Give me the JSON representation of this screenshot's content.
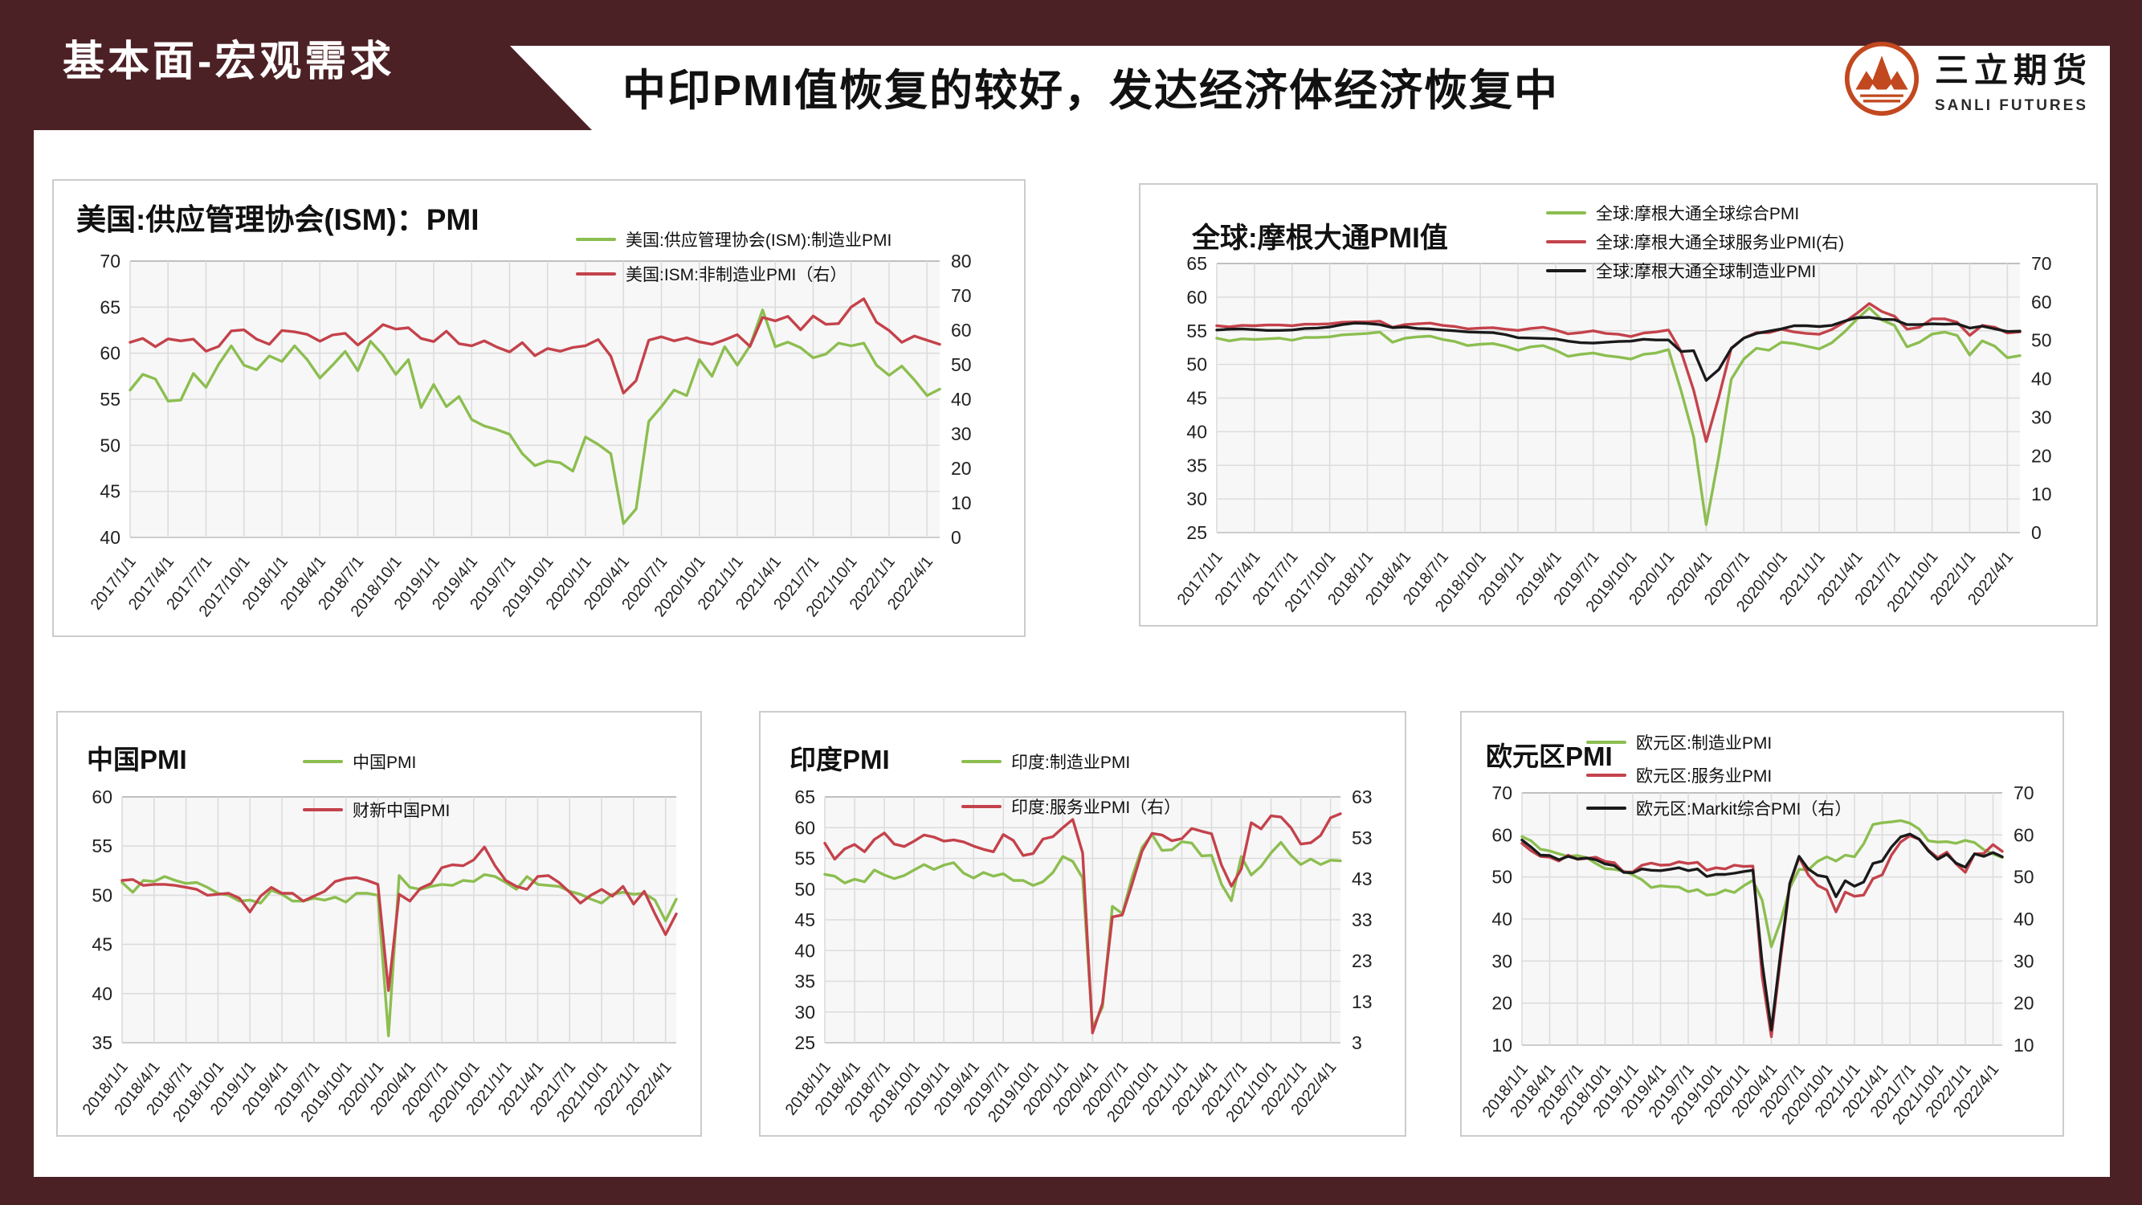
{
  "header": {
    "section_label": "基本面-宏观需求",
    "title": "中印PMI值恢复的较好，发达经济体经济恢复中",
    "logo": {
      "name": "三立期货",
      "subtitle": "SANLI FUTURES",
      "color": "#c2481f"
    }
  },
  "colors": {
    "green": "#8cbe50",
    "red": "#c4424b",
    "black": "#1a1a1a",
    "maroon": "#4c2125",
    "grid": "#dcdcdc",
    "plot_bg": "#f7f7f7"
  },
  "chart_data": [
    {
      "type": "line",
      "title": "美国:供应管理协会(ISM)：PMI",
      "left_axis": {
        "min": 40,
        "max": 70,
        "ticks": [
          70,
          65,
          60,
          55,
          50,
          45,
          40
        ]
      },
      "right_axis": {
        "min": 0,
        "max": 80,
        "ticks": [
          80,
          70,
          60,
          50,
          40,
          30,
          20,
          10,
          0
        ]
      },
      "x_tick_labels": [
        "2017/1/1",
        "2017/4/1",
        "2017/7/1",
        "2017/10/1",
        "2018/1/1",
        "2018/4/1",
        "2018/7/1",
        "2018/10/1",
        "2019/1/1",
        "2019/4/1",
        "2019/7/1",
        "2019/10/1",
        "2020/1/1",
        "2020/4/1",
        "2020/7/1",
        "2020/10/1",
        "2021/1/1",
        "2021/4/1",
        "2021/7/1",
        "2021/10/1",
        "2022/1/1",
        "2022/4/1"
      ],
      "series": [
        {
          "label": "美国:供应管理协会(ISM):制造业PMI",
          "color": "#8cbe50",
          "axis": "left",
          "values": [
            56.0,
            57.7,
            57.2,
            54.8,
            54.9,
            57.8,
            56.3,
            58.8,
            60.8,
            58.7,
            58.2,
            59.7,
            59.1,
            60.8,
            59.3,
            57.3,
            58.7,
            60.2,
            58.1,
            61.3,
            59.8,
            57.7,
            59.3,
            54.1,
            56.6,
            54.2,
            55.3,
            52.8,
            52.1,
            51.7,
            51.2,
            49.1,
            47.8,
            48.3,
            48.1,
            47.2,
            50.9,
            50.1,
            49.1,
            41.5,
            43.1,
            52.6,
            54.2,
            56.0,
            55.4,
            59.3,
            57.5,
            60.7,
            58.7,
            60.8,
            64.7,
            60.7,
            61.2,
            60.6,
            59.5,
            59.9,
            61.1,
            60.8,
            61.1,
            58.7,
            57.6,
            58.6,
            57.1,
            55.4,
            56.1
          ]
        },
        {
          "label": "美国:ISM:非制造业PMI（右）",
          "color": "#c4424b",
          "axis": "right",
          "values": [
            56.5,
            57.6,
            55.2,
            57.5,
            56.9,
            57.4,
            53.9,
            55.3,
            59.8,
            60.1,
            57.4,
            55.9,
            59.9,
            59.5,
            58.8,
            56.8,
            58.6,
            59.1,
            55.7,
            58.5,
            61.6,
            60.3,
            60.7,
            57.6,
            56.7,
            59.7,
            56.1,
            55.5,
            56.9,
            55.1,
            53.7,
            56.4,
            52.6,
            54.7,
            53.9,
            55.0,
            55.5,
            57.3,
            52.5,
            41.8,
            45.4,
            57.1,
            58.1,
            56.9,
            57.8,
            56.6,
            55.9,
            57.2,
            58.7,
            55.3,
            63.7,
            62.7,
            64.0,
            60.1,
            64.1,
            61.7,
            61.9,
            66.7,
            69.1,
            62.3,
            59.9,
            56.5,
            58.3,
            57.1,
            55.9
          ]
        }
      ]
    },
    {
      "type": "line",
      "title": "全球:摩根大通PMI值",
      "left_axis": {
        "min": 25,
        "max": 65,
        "ticks": [
          65,
          60,
          55,
          50,
          45,
          40,
          35,
          30,
          25
        ]
      },
      "right_axis": {
        "min": 0,
        "max": 70,
        "ticks": [
          70,
          60,
          50,
          40,
          30,
          20,
          10,
          0
        ]
      },
      "x_tick_labels": [
        "2017/1/1",
        "2017/4/1",
        "2017/7/1",
        "2017/10/1",
        "2018/1/1",
        "2018/4/1",
        "2018/7/1",
        "2018/10/1",
        "2019/1/1",
        "2019/4/1",
        "2019/7/1",
        "2019/10/1",
        "2020/1/1",
        "2020/4/1",
        "2020/7/1",
        "2020/10/1",
        "2021/1/1",
        "2021/4/1",
        "2021/7/1",
        "2021/10/1",
        "2022/1/1",
        "2022/4/1"
      ],
      "series": [
        {
          "label": "全球:摩根大通全球综合PMI",
          "color": "#8cbe50",
          "axis": "left",
          "values": [
            53.9,
            53.5,
            53.8,
            53.7,
            53.8,
            53.9,
            53.6,
            54.0,
            54.0,
            54.1,
            54.4,
            54.5,
            54.6,
            54.8,
            53.3,
            53.9,
            54.1,
            54.2,
            53.7,
            53.4,
            52.8,
            53.0,
            53.1,
            52.7,
            52.1,
            52.6,
            52.8,
            52.1,
            51.2,
            51.5,
            51.7,
            51.3,
            51.1,
            50.8,
            51.5,
            51.7,
            52.2,
            46.1,
            39.2,
            26.2,
            36.3,
            47.8,
            50.8,
            52.4,
            52.1,
            53.3,
            53.1,
            52.7,
            52.3,
            53.2,
            54.8,
            56.7,
            58.4,
            56.6,
            55.8,
            52.6,
            53.3,
            54.5,
            54.8,
            54.3,
            51.4,
            53.5,
            52.7,
            51.0,
            51.3
          ]
        },
        {
          "label": "全球:摩根大通全球服务业PMI(右)",
          "color": "#c4424b",
          "axis": "right",
          "values": [
            53.8,
            53.5,
            53.9,
            53.8,
            54.0,
            54.0,
            53.8,
            54.2,
            54.2,
            54.3,
            54.7,
            54.8,
            54.8,
            55.0,
            53.4,
            54.1,
            54.3,
            54.5,
            53.9,
            53.6,
            53.0,
            53.2,
            53.3,
            52.9,
            52.6,
            53.1,
            53.4,
            52.7,
            51.7,
            52.0,
            52.5,
            51.8,
            51.6,
            51.0,
            51.9,
            52.2,
            52.7,
            47.1,
            37.0,
            23.7,
            35.2,
            48.0,
            50.6,
            52.0,
            52.0,
            52.9,
            52.2,
            51.8,
            51.6,
            52.8,
            54.7,
            57.0,
            59.6,
            57.5,
            56.3,
            52.9,
            53.4,
            55.6,
            55.6,
            54.7,
            51.3,
            53.9,
            53.4,
            51.9,
            52.2
          ]
        },
        {
          "label": "全球:摩根大通全球制造业PMI",
          "color": "#1a1a1a",
          "axis": "right",
          "values": [
            52.7,
            52.9,
            53.0,
            52.8,
            52.6,
            52.6,
            52.7,
            53.1,
            53.2,
            53.5,
            54.1,
            54.5,
            54.4,
            54.1,
            53.3,
            53.5,
            53.1,
            53.0,
            52.7,
            52.5,
            52.2,
            52.1,
            52.0,
            51.5,
            50.7,
            50.6,
            50.5,
            50.4,
            49.8,
            49.4,
            49.3,
            49.5,
            49.7,
            49.8,
            50.3,
            50.1,
            50.1,
            47.1,
            47.3,
            39.6,
            42.4,
            47.9,
            50.6,
            51.8,
            52.4,
            53.0,
            53.8,
            53.8,
            53.6,
            53.9,
            55.0,
            55.9,
            56.0,
            55.5,
            55.4,
            54.1,
            54.1,
            54.3,
            54.2,
            54.3,
            53.2,
            53.7,
            53.0,
            52.3,
            52.4
          ]
        }
      ]
    },
    {
      "type": "line",
      "title": "中国PMI",
      "left_axis": {
        "min": 35,
        "max": 60,
        "ticks": [
          60,
          55,
          50,
          45,
          40,
          35
        ]
      },
      "right_axis": null,
      "x_tick_labels": [
        "2018/1/1",
        "2018/4/1",
        "2018/7/1",
        "2018/10/1",
        "2019/1/1",
        "2019/4/1",
        "2019/7/1",
        "2019/10/1",
        "2020/1/1",
        "2020/4/1",
        "2020/7/1",
        "2020/10/1",
        "2021/1/1",
        "2021/4/1",
        "2021/7/1",
        "2021/10/1",
        "2022/1/1",
        "2022/4/1"
      ],
      "series": [
        {
          "label": "中国PMI",
          "color": "#8cbe50",
          "axis": "left",
          "values": [
            51.3,
            50.3,
            51.5,
            51.4,
            51.9,
            51.5,
            51.2,
            51.3,
            50.8,
            50.2,
            50.0,
            49.4,
            49.5,
            49.2,
            50.5,
            50.1,
            49.4,
            49.4,
            49.7,
            49.5,
            49.8,
            49.3,
            50.2,
            50.2,
            50.0,
            35.7,
            52.0,
            50.8,
            50.6,
            50.9,
            51.1,
            51.0,
            51.5,
            51.4,
            52.1,
            51.9,
            51.3,
            50.6,
            51.9,
            51.1,
            51.0,
            50.9,
            50.4,
            50.1,
            49.6,
            49.2,
            50.1,
            50.3,
            50.1,
            50.2,
            49.5,
            47.4,
            49.6
          ]
        },
        {
          "label": "财新中国PMI",
          "color": "#c4424b",
          "axis": "left",
          "values": [
            51.5,
            51.6,
            51.0,
            51.1,
            51.1,
            51.0,
            50.8,
            50.6,
            50.0,
            50.1,
            50.2,
            49.7,
            48.3,
            49.9,
            50.8,
            50.2,
            50.2,
            49.4,
            49.9,
            50.4,
            51.4,
            51.7,
            51.8,
            51.5,
            51.1,
            40.3,
            50.1,
            49.4,
            50.7,
            51.2,
            52.8,
            53.1,
            53.0,
            53.6,
            54.9,
            53.0,
            51.5,
            50.9,
            50.6,
            51.9,
            52.0,
            51.3,
            50.3,
            49.2,
            50.0,
            50.6,
            49.9,
            50.9,
            49.1,
            50.4,
            48.1,
            46.0,
            48.1
          ]
        }
      ]
    },
    {
      "type": "line",
      "title": "印度PMI",
      "left_axis": {
        "min": 25,
        "max": 65,
        "ticks": [
          65,
          60,
          55,
          50,
          45,
          40,
          35,
          30,
          25
        ]
      },
      "right_axis": {
        "min": 3,
        "max": 63,
        "ticks": [
          63,
          53,
          43,
          33,
          23,
          13,
          3
        ]
      },
      "x_tick_labels": [
        "2018/1/1",
        "2018/4/1",
        "2018/7/1",
        "2018/10/1",
        "2019/1/1",
        "2019/4/1",
        "2019/7/1",
        "2019/10/1",
        "2020/1/1",
        "2020/4/1",
        "2020/7/1",
        "2020/10/1",
        "2021/1/1",
        "2021/4/1",
        "2021/7/1",
        "2021/10/1",
        "2022/1/1",
        "2022/4/1"
      ],
      "series": [
        {
          "label": "印度:制造业PMI",
          "color": "#8cbe50",
          "axis": "left",
          "values": [
            52.4,
            52.1,
            51.0,
            51.6,
            51.2,
            53.1,
            52.3,
            51.7,
            52.2,
            53.1,
            54.0,
            53.2,
            53.9,
            54.3,
            52.6,
            51.8,
            52.7,
            52.1,
            52.5,
            51.4,
            51.4,
            50.6,
            51.2,
            52.7,
            55.3,
            54.5,
            51.8,
            27.4,
            30.8,
            47.2,
            46.0,
            52.0,
            56.8,
            58.9,
            56.3,
            56.4,
            57.7,
            57.5,
            55.4,
            55.5,
            50.8,
            48.1,
            55.3,
            52.3,
            53.7,
            55.9,
            57.6,
            55.5,
            54.0,
            54.9,
            54.0,
            54.7,
            54.6
          ]
        },
        {
          "label": "印度:服务业PMI（右）",
          "color": "#c4424b",
          "axis": "right",
          "values": [
            51.7,
            47.8,
            50.3,
            51.4,
            49.6,
            52.6,
            54.2,
            51.5,
            50.9,
            52.2,
            53.7,
            53.2,
            52.2,
            52.5,
            52.0,
            51.0,
            50.2,
            49.6,
            53.8,
            52.4,
            48.7,
            49.2,
            52.7,
            53.3,
            55.5,
            57.5,
            49.3,
            5.4,
            12.6,
            33.7,
            34.2,
            41.8,
            49.8,
            54.1,
            53.7,
            52.3,
            52.8,
            55.3,
            54.6,
            54.0,
            46.4,
            41.2,
            45.4,
            56.7,
            55.2,
            58.4,
            58.1,
            55.5,
            51.5,
            51.8,
            53.6,
            57.9,
            58.9
          ]
        }
      ]
    },
    {
      "type": "line",
      "title": "欧元区PMI",
      "left_axis": {
        "min": 10,
        "max": 70,
        "ticks": [
          70,
          60,
          50,
          40,
          30,
          20,
          10
        ]
      },
      "right_axis": {
        "min": 10,
        "max": 70,
        "ticks": [
          70,
          60,
          50,
          40,
          30,
          20,
          10
        ]
      },
      "x_tick_labels": [
        "2018/1/1",
        "2018/4/1",
        "2018/7/1",
        "2018/10/1",
        "2019/1/1",
        "2019/4/1",
        "2019/7/1",
        "2019/10/1",
        "2020/1/1",
        "2020/4/1",
        "2020/7/1",
        "2020/10/1",
        "2021/1/1",
        "2021/4/1",
        "2021/7/1",
        "2021/10/1",
        "2022/1/1",
        "2022/4/1"
      ],
      "series": [
        {
          "label": "欧元区:制造业PMI",
          "color": "#8cbe50",
          "axis": "left",
          "values": [
            59.6,
            58.6,
            56.6,
            56.2,
            55.5,
            54.9,
            55.1,
            54.6,
            53.2,
            52.0,
            51.8,
            51.4,
            50.5,
            49.3,
            47.5,
            47.9,
            47.7,
            47.6,
            46.5,
            47.0,
            45.7,
            45.9,
            46.9,
            46.3,
            47.9,
            49.2,
            44.5,
            33.4,
            39.4,
            47.4,
            51.8,
            51.7,
            53.7,
            54.8,
            53.8,
            55.2,
            54.8,
            57.9,
            62.5,
            62.9,
            63.1,
            63.4,
            62.8,
            61.4,
            58.6,
            58.3,
            58.4,
            58.0,
            58.7,
            58.2,
            56.5,
            55.5,
            54.6
          ]
        },
        {
          "label": "欧元区:服务业PMI",
          "color": "#c4424b",
          "axis": "left",
          "values": [
            58.0,
            56.2,
            54.9,
            54.7,
            53.8,
            55.2,
            54.2,
            54.4,
            54.7,
            53.7,
            53.4,
            51.2,
            51.2,
            52.8,
            53.3,
            52.8,
            52.9,
            53.6,
            53.2,
            53.5,
            51.6,
            52.2,
            51.9,
            52.8,
            52.5,
            52.6,
            26.4,
            12.0,
            30.5,
            48.3,
            54.7,
            50.5,
            48.0,
            46.9,
            41.7,
            46.4,
            45.4,
            45.7,
            49.6,
            50.5,
            55.2,
            58.3,
            59.8,
            59.0,
            56.4,
            54.6,
            55.9,
            53.1,
            51.1,
            55.5,
            55.6,
            57.7,
            56.1
          ]
        },
        {
          "label": "欧元区:Markit综合PMI（右）",
          "color": "#1a1a1a",
          "axis": "right",
          "values": [
            58.8,
            57.1,
            55.2,
            55.1,
            54.1,
            54.9,
            54.3,
            54.5,
            54.1,
            53.1,
            52.7,
            51.1,
            51.0,
            51.9,
            51.6,
            51.5,
            51.8,
            52.2,
            51.5,
            51.9,
            50.1,
            50.6,
            50.6,
            50.9,
            51.3,
            51.6,
            29.7,
            13.6,
            31.9,
            48.5,
            54.9,
            51.9,
            50.4,
            50.0,
            45.3,
            49.1,
            47.8,
            48.8,
            53.2,
            53.8,
            57.1,
            59.5,
            60.2,
            59.0,
            56.2,
            54.2,
            55.4,
            53.3,
            52.3,
            55.5,
            54.9,
            55.8,
            54.8
          ]
        }
      ]
    }
  ]
}
